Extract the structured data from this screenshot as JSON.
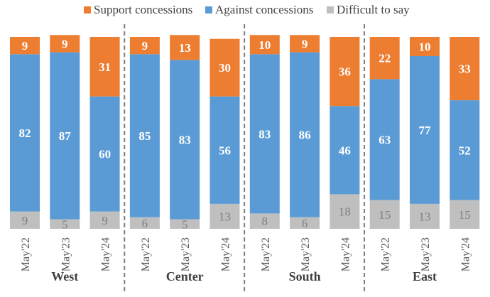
{
  "chart_data": {
    "type": "bar",
    "stacked": true,
    "orientation": "vertical",
    "title": "",
    "xlabel": "",
    "ylabel": "",
    "ylim": [
      0,
      100
    ],
    "grid": false,
    "legend_position": "top",
    "groups": [
      {
        "name": "West",
        "categories": [
          "May'22",
          "May'23",
          "May'24"
        ]
      },
      {
        "name": "Center",
        "categories": [
          "May'22",
          "May'23",
          "May'24"
        ]
      },
      {
        "name": "South",
        "categories": [
          "May'22",
          "May'23",
          "May'24"
        ]
      },
      {
        "name": "East",
        "categories": [
          "May'22",
          "May'23",
          "May'24"
        ]
      }
    ],
    "categories": [
      "West May'22",
      "West May'23",
      "West May'24",
      "Center May'22",
      "Center May'23",
      "Center May'24",
      "South May'22",
      "South May'23",
      "South May'24",
      "East May'22",
      "East May'23",
      "East May'24"
    ],
    "series": [
      {
        "name": "Difficult to say",
        "color": "#BFBFBF",
        "label_color": "#7F7F7F",
        "values": [
          9,
          5,
          9,
          6,
          5,
          13,
          8,
          6,
          18,
          15,
          13,
          15
        ]
      },
      {
        "name": "Against concessions",
        "color": "#5B9BD5",
        "label_color": "#FFFFFF",
        "values": [
          82,
          87,
          60,
          85,
          83,
          56,
          83,
          86,
          46,
          63,
          77,
          52
        ]
      },
      {
        "name": "Support concessions",
        "color": "#ED7D31",
        "label_color": "#FFFFFF",
        "values": [
          9,
          9,
          31,
          9,
          13,
          30,
          10,
          9,
          36,
          22,
          10,
          33
        ]
      }
    ],
    "legend_order": [
      "Support concessions",
      "Against concessions",
      "Difficult to say"
    ]
  }
}
